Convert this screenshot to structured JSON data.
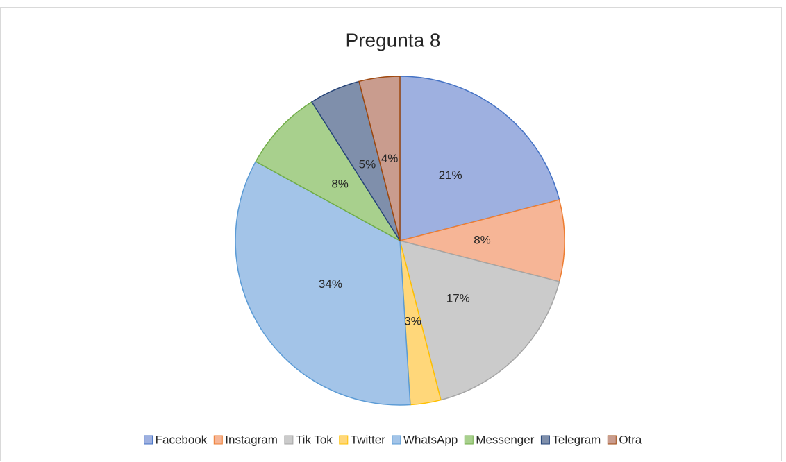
{
  "chart_data": {
    "type": "pie",
    "title": "Pregunta 8",
    "categories": [
      "Facebook",
      "Instagram",
      "Tik Tok",
      "Twitter",
      "WhatsApp",
      "Messenger",
      "Telegram",
      "Otra"
    ],
    "values": [
      21,
      8,
      17,
      3,
      34,
      8,
      5,
      4
    ],
    "value_labels": [
      "21%",
      "8%",
      "17%",
      "3%",
      "34%",
      "8%",
      "5%",
      "4%"
    ],
    "colors": [
      "#9eb0e0",
      "#f6b596",
      "#cbcbcb",
      "#ffd77a",
      "#a3c4e8",
      "#a8d08d",
      "#7f8fab",
      "#c99c8e"
    ],
    "legend": "bottom"
  }
}
